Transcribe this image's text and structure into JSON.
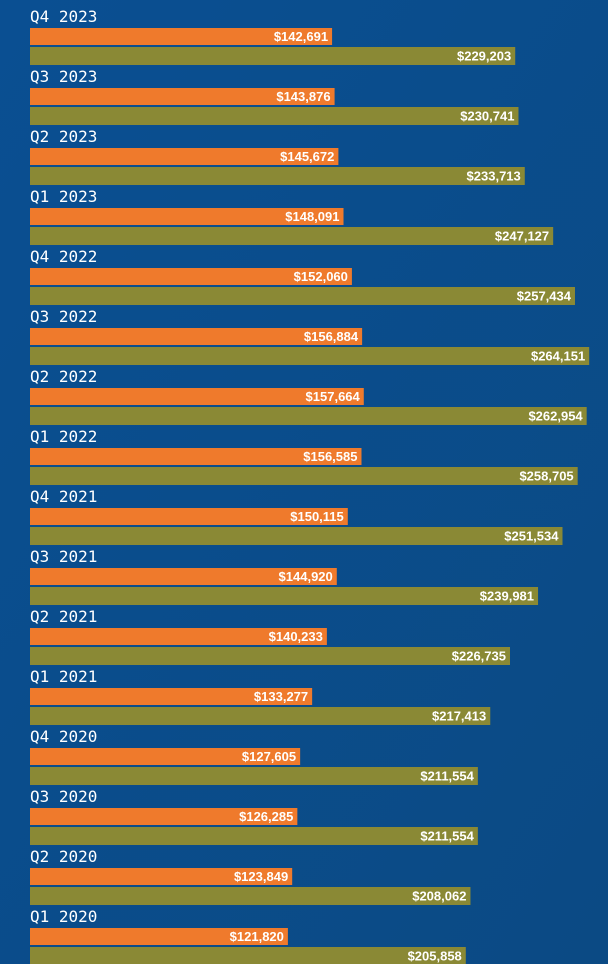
{
  "chart_data": {
    "type": "bar",
    "orientation": "horizontal",
    "categories": [
      "Q4 2023",
      "Q3 2023",
      "Q2 2023",
      "Q1 2023",
      "Q4 2022",
      "Q3 2022",
      "Q2 2022",
      "Q1 2022",
      "Q4 2021",
      "Q3 2021",
      "Q2 2021",
      "Q1 2021",
      "Q4 2020",
      "Q3 2020",
      "Q2 2020",
      "Q1 2020"
    ],
    "series": [
      {
        "color": "#ef7a2c",
        "values": [
          142691,
          143876,
          145672,
          148091,
          152060,
          156884,
          157664,
          156585,
          150115,
          144920,
          140233,
          133277,
          127605,
          126285,
          123849,
          121820
        ],
        "value_labels": [
          "$142,691",
          "$143,876",
          "$145,672",
          "$148,091",
          "$152,060",
          "$156,884",
          "$157,664",
          "$156,585",
          "$150,115",
          "$144,920",
          "$140,233",
          "$133,277",
          "$127,605",
          "$126,285",
          "$123,849",
          "$121,820"
        ]
      },
      {
        "color": "#8a8935",
        "values": [
          229203,
          230741,
          233713,
          247127,
          257434,
          264151,
          262954,
          258705,
          251534,
          239981,
          226735,
          217413,
          211554,
          211554,
          208062,
          205858
        ],
        "value_labels": [
          "$229,203",
          "$230,741",
          "$233,713",
          "$247,127",
          "$257,434",
          "$264,151",
          "$262,954",
          "$258,705",
          "$251,534",
          "$239,981",
          "$226,735",
          "$217,413",
          "$211,554",
          "$211,554",
          "$208,062",
          "$205,858"
        ]
      }
    ]
  }
}
